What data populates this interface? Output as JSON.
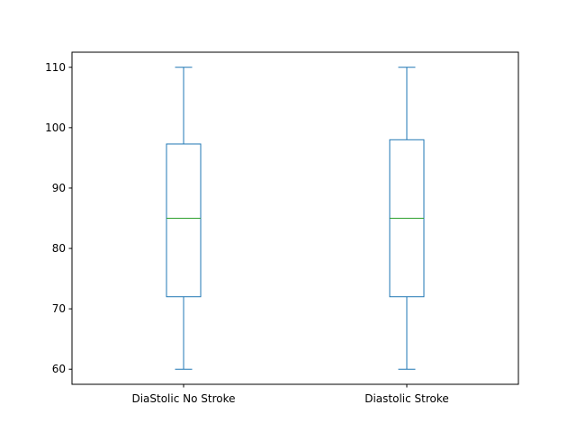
{
  "chart_data": {
    "type": "boxplot",
    "title": "",
    "xlabel": "",
    "ylabel": "",
    "categories": [
      "DiaStolic No Stroke",
      "Diastolic Stroke"
    ],
    "boxes": [
      {
        "category": "DiaStolic No Stroke",
        "whisker_low": 60,
        "q1": 72,
        "median": 85,
        "q3": 97.3,
        "whisker_high": 110
      },
      {
        "category": "Diastolic Stroke",
        "whisker_low": 60,
        "q1": 72,
        "median": 85,
        "q3": 98,
        "whisker_high": 110
      }
    ],
    "ylim": [
      57.5,
      112.5
    ],
    "yticks": [
      60,
      70,
      80,
      90,
      100,
      110
    ],
    "grid": false,
    "colors": {
      "box": "#1f77b4",
      "median": "#2ca02c",
      "axes": "#000000"
    }
  }
}
